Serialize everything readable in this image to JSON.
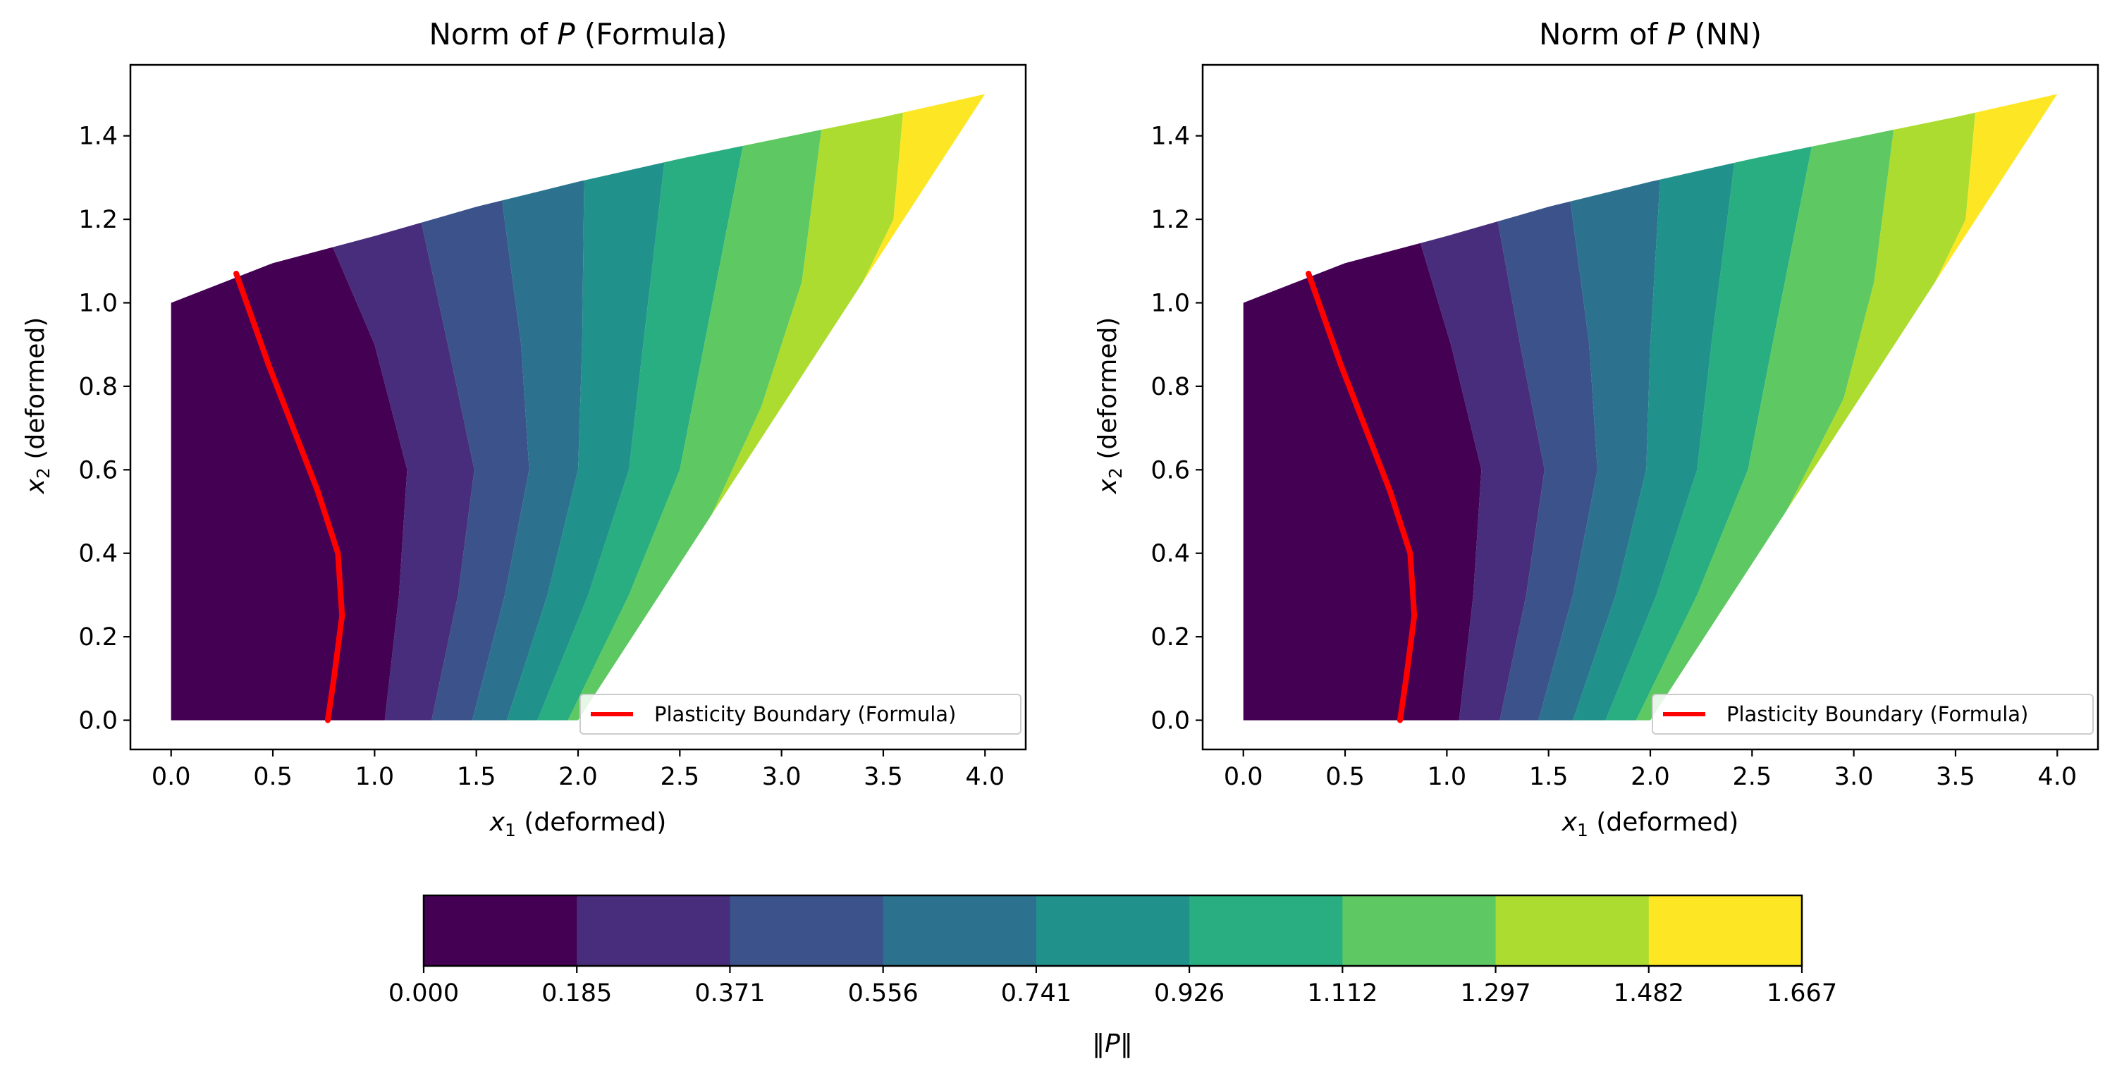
{
  "chart_data": [
    {
      "type": "contour",
      "title": "Norm of P (Formula)",
      "title_parts": {
        "prefix": "Norm of ",
        "symbol": "P",
        "suffix": " (Formula)"
      },
      "xlabel": "x1 (deformed)",
      "xlabel_parts": {
        "symbol": "x",
        "sub": "1",
        "rest": " (deformed)"
      },
      "ylabel": "x2 (deformed)",
      "ylabel_parts": {
        "symbol": "x",
        "sub": "2",
        "rest": " (deformed)"
      },
      "xlim": [
        -0.2,
        4.2
      ],
      "ylim": [
        -0.07,
        1.57
      ],
      "xticks": [
        "0.0",
        "0.5",
        "1.0",
        "1.5",
        "2.0",
        "2.5",
        "3.0",
        "3.5",
        "4.0"
      ],
      "yticks": [
        "0.0",
        "0.2",
        "0.4",
        "0.6",
        "0.8",
        "1.0",
        "1.2",
        "1.4"
      ],
      "domain": {
        "top_edge": [
          [
            0.0,
            1.0
          ],
          [
            0.5,
            1.095
          ],
          [
            1.0,
            1.16
          ],
          [
            1.5,
            1.23
          ],
          [
            2.0,
            1.29
          ],
          [
            2.5,
            1.345
          ],
          [
            3.0,
            1.395
          ],
          [
            3.5,
            1.445
          ],
          [
            4.0,
            1.5
          ]
        ],
        "right_edge": [
          [
            4.0,
            1.5
          ],
          [
            2.0,
            0.0
          ]
        ],
        "bottom_edge": [
          [
            2.0,
            0.0
          ],
          [
            0.0,
            0.0
          ]
        ],
        "left_edge": [
          [
            0.0,
            0.0
          ],
          [
            0.0,
            1.0
          ]
        ]
      },
      "contour_boundaries": [
        {
          "level": 0.185,
          "points": [
            [
              1.05,
              0.0
            ],
            [
              1.12,
              0.3
            ],
            [
              1.16,
              0.6
            ],
            [
              1.0,
              0.9
            ],
            [
              0.78,
              1.15
            ]
          ]
        },
        {
          "level": 0.371,
          "points": [
            [
              1.28,
              0.0
            ],
            [
              1.41,
              0.3
            ],
            [
              1.49,
              0.6
            ],
            [
              1.36,
              0.9
            ],
            [
              1.2,
              1.26
            ]
          ]
        },
        {
          "level": 0.556,
          "points": [
            [
              1.48,
              0.0
            ],
            [
              1.64,
              0.3
            ],
            [
              1.76,
              0.6
            ],
            [
              1.72,
              0.9
            ],
            [
              1.62,
              1.27
            ]
          ]
        },
        {
          "level": 0.741,
          "points": [
            [
              1.65,
              0.0
            ],
            [
              1.85,
              0.3
            ],
            [
              2.0,
              0.6
            ],
            [
              2.02,
              0.9
            ],
            [
              2.03,
              1.31
            ]
          ]
        },
        {
          "level": 0.926,
          "points": [
            [
              1.8,
              0.0
            ],
            [
              2.05,
              0.3
            ],
            [
              2.25,
              0.6
            ],
            [
              2.32,
              0.9
            ],
            [
              2.43,
              1.36
            ]
          ]
        },
        {
          "level": 1.112,
          "points": [
            [
              1.95,
              0.0
            ],
            [
              2.25,
              0.3
            ],
            [
              2.5,
              0.6
            ],
            [
              2.62,
              0.9
            ],
            [
              2.82,
              1.4
            ]
          ]
        },
        {
          "level": 1.297,
          "points": [
            [
              2.05,
              0.0
            ],
            [
              2.55,
              0.38
            ],
            [
              2.9,
              0.75
            ],
            [
              3.1,
              1.05
            ],
            [
              3.2,
              1.43
            ]
          ]
        },
        {
          "level": 1.482,
          "points": [
            [
              3.0,
              0.73
            ],
            [
              3.3,
              0.95
            ],
            [
              3.55,
              1.2
            ],
            [
              3.6,
              1.47
            ]
          ]
        }
      ],
      "plasticity_boundary": [
        [
          0.77,
          0.0
        ],
        [
          0.8,
          0.1
        ],
        [
          0.84,
          0.25
        ],
        [
          0.82,
          0.4
        ],
        [
          0.72,
          0.55
        ],
        [
          0.6,
          0.7
        ],
        [
          0.48,
          0.85
        ],
        [
          0.32,
          1.07
        ]
      ],
      "legend": {
        "label": "Plasticity Boundary (Formula)",
        "color": "#ff0000",
        "location": "lower right"
      }
    },
    {
      "type": "contour",
      "title": "Norm of P (NN)",
      "title_parts": {
        "prefix": "Norm of ",
        "symbol": "P",
        "suffix": " (NN)"
      },
      "xlabel": "x1 (deformed)",
      "xlabel_parts": {
        "symbol": "x",
        "sub": "1",
        "rest": " (deformed)"
      },
      "ylabel": "x2 (deformed)",
      "ylabel_parts": {
        "symbol": "x",
        "sub": "2",
        "rest": " (deformed)"
      },
      "xlim": [
        -0.2,
        4.2
      ],
      "ylim": [
        -0.07,
        1.57
      ],
      "xticks": [
        "0.0",
        "0.5",
        "1.0",
        "1.5",
        "2.0",
        "2.5",
        "3.0",
        "3.5",
        "4.0"
      ],
      "yticks": [
        "0.0",
        "0.2",
        "0.4",
        "0.6",
        "0.8",
        "1.0",
        "1.2",
        "1.4"
      ],
      "domain": {
        "top_edge": [
          [
            0.0,
            1.0
          ],
          [
            0.5,
            1.095
          ],
          [
            1.0,
            1.16
          ],
          [
            1.5,
            1.23
          ],
          [
            2.0,
            1.29
          ],
          [
            2.5,
            1.345
          ],
          [
            3.0,
            1.395
          ],
          [
            3.5,
            1.445
          ],
          [
            4.0,
            1.5
          ]
        ],
        "right_edge": [
          [
            4.0,
            1.5
          ],
          [
            2.0,
            0.0
          ]
        ],
        "bottom_edge": [
          [
            2.0,
            0.0
          ],
          [
            0.0,
            0.0
          ]
        ],
        "left_edge": [
          [
            0.0,
            0.0
          ],
          [
            0.0,
            1.0
          ]
        ]
      },
      "contour_boundaries": [
        {
          "level": 0.185,
          "points": [
            [
              1.06,
              0.0
            ],
            [
              1.13,
              0.3
            ],
            [
              1.17,
              0.6
            ],
            [
              1.02,
              0.9
            ],
            [
              0.86,
              1.16
            ]
          ]
        },
        {
          "level": 0.371,
          "points": [
            [
              1.26,
              0.0
            ],
            [
              1.39,
              0.3
            ],
            [
              1.48,
              0.6
            ],
            [
              1.36,
              0.9
            ],
            [
              1.23,
              1.25
            ]
          ]
        },
        {
          "level": 0.556,
          "points": [
            [
              1.45,
              0.0
            ],
            [
              1.62,
              0.3
            ],
            [
              1.74,
              0.6
            ],
            [
              1.7,
              0.9
            ],
            [
              1.6,
              1.27
            ]
          ]
        },
        {
          "level": 0.741,
          "points": [
            [
              1.62,
              0.0
            ],
            [
              1.83,
              0.3
            ],
            [
              1.98,
              0.6
            ],
            [
              2.0,
              0.9
            ],
            [
              2.05,
              1.31
            ]
          ]
        },
        {
          "level": 0.926,
          "points": [
            [
              1.78,
              0.0
            ],
            [
              2.03,
              0.3
            ],
            [
              2.23,
              0.6
            ],
            [
              2.3,
              0.9
            ],
            [
              2.42,
              1.36
            ]
          ]
        },
        {
          "level": 1.112,
          "points": [
            [
              1.93,
              0.0
            ],
            [
              2.23,
              0.3
            ],
            [
              2.48,
              0.6
            ],
            [
              2.6,
              0.9
            ],
            [
              2.8,
              1.39
            ]
          ]
        },
        {
          "level": 1.297,
          "points": [
            [
              2.04,
              0.0
            ],
            [
              2.5,
              0.34
            ],
            [
              2.95,
              0.77
            ],
            [
              3.1,
              1.05
            ],
            [
              3.2,
              1.43
            ]
          ]
        },
        {
          "level": 1.482,
          "points": [
            [
              3.05,
              0.77
            ],
            [
              3.35,
              1.0
            ],
            [
              3.55,
              1.2
            ],
            [
              3.6,
              1.47
            ]
          ]
        }
      ],
      "plasticity_boundary": [
        [
          0.77,
          0.0
        ],
        [
          0.8,
          0.1
        ],
        [
          0.84,
          0.25
        ],
        [
          0.82,
          0.4
        ],
        [
          0.72,
          0.55
        ],
        [
          0.6,
          0.7
        ],
        [
          0.48,
          0.85
        ],
        [
          0.32,
          1.07
        ]
      ],
      "legend": {
        "label": "Plasticity Boundary (Formula)",
        "color": "#ff0000",
        "location": "lower right"
      }
    }
  ],
  "colorbar": {
    "label": "‖P‖",
    "label_parts": {
      "left": "‖",
      "symbol": "P",
      "right": "‖"
    },
    "orientation": "horizontal",
    "colormap": "viridis",
    "levels": [
      "0.000",
      "0.185",
      "0.371",
      "0.556",
      "0.741",
      "0.926",
      "1.112",
      "1.297",
      "1.482",
      "1.667"
    ],
    "colors": [
      "#440154",
      "#472d7b",
      "#3b528b",
      "#2c728e",
      "#21918c",
      "#28ae80",
      "#5ec962",
      "#addc30",
      "#fde725"
    ]
  }
}
